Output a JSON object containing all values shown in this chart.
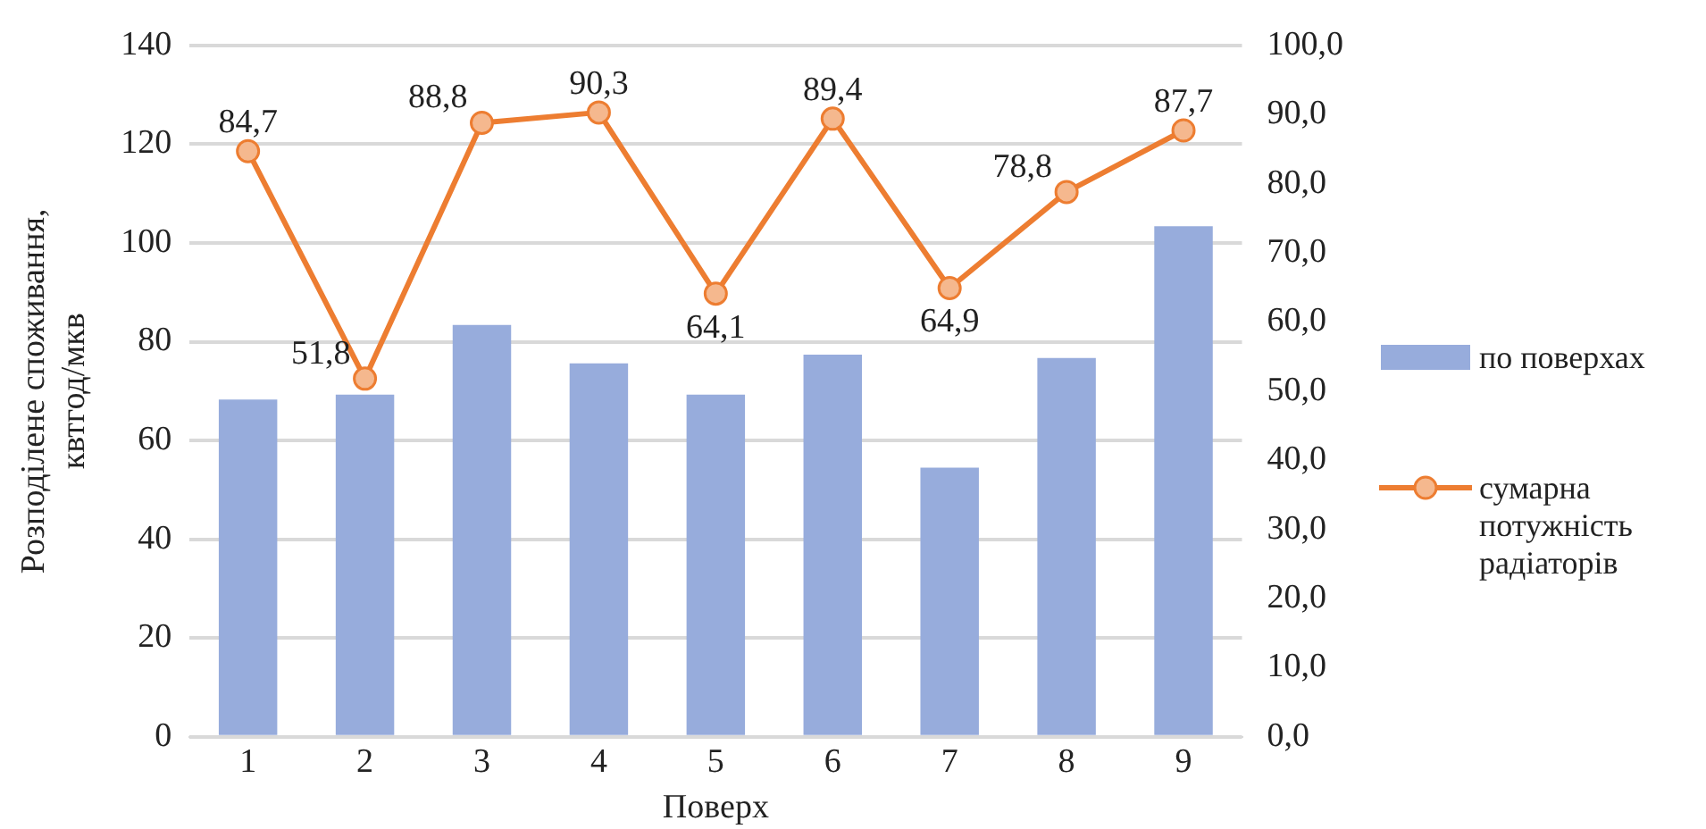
{
  "chart_data": {
    "type": "bar",
    "xlabel": "Поверх",
    "ylabel": "Розподілене споживання, квтгод/мкв",
    "categories": [
      "1",
      "2",
      "3",
      "4",
      "5",
      "6",
      "7",
      "8",
      "9"
    ],
    "series": [
      {
        "name": "по поверхах",
        "color": "#97acdc",
        "values": [
          68.3,
          69.3,
          83.4,
          75.6,
          69.3,
          77.4,
          54.5,
          76.7,
          103.4
        ]
      },
      {
        "name": "сумарна потужність радіаторів",
        "type": "line",
        "axis": "y2",
        "color": "#ed7d31",
        "values": [
          84.7,
          51.8,
          88.8,
          90.3,
          64.1,
          89.4,
          64.9,
          78.8,
          87.7
        ],
        "value_labels": [
          "84,7",
          "51,8",
          "88,8",
          "90,3",
          "64,1",
          "89,4",
          "64,9",
          "78,8",
          "87,7"
        ]
      }
    ],
    "ylim": [
      0,
      140
    ],
    "yticks": [
      0,
      20,
      40,
      60,
      80,
      100,
      120,
      140
    ],
    "y2lim": [
      0,
      100
    ],
    "y2ticks": [
      {
        "value": 0,
        "label": "0,0"
      },
      {
        "value": 10,
        "label": "10,0"
      },
      {
        "value": 20,
        "label": "20,0"
      },
      {
        "value": 30,
        "label": "30,0"
      },
      {
        "value": 40,
        "label": "40,0"
      },
      {
        "value": 50,
        "label": "50,0"
      },
      {
        "value": 60,
        "label": "60,0"
      },
      {
        "value": 70,
        "label": "70,0"
      },
      {
        "value": 80,
        "label": "80,0"
      },
      {
        "value": 90,
        "label": "90,0"
      },
      {
        "value": 100,
        "label": "100,0"
      }
    ],
    "grid": "y",
    "legend": "right",
    "marker": "circle"
  }
}
